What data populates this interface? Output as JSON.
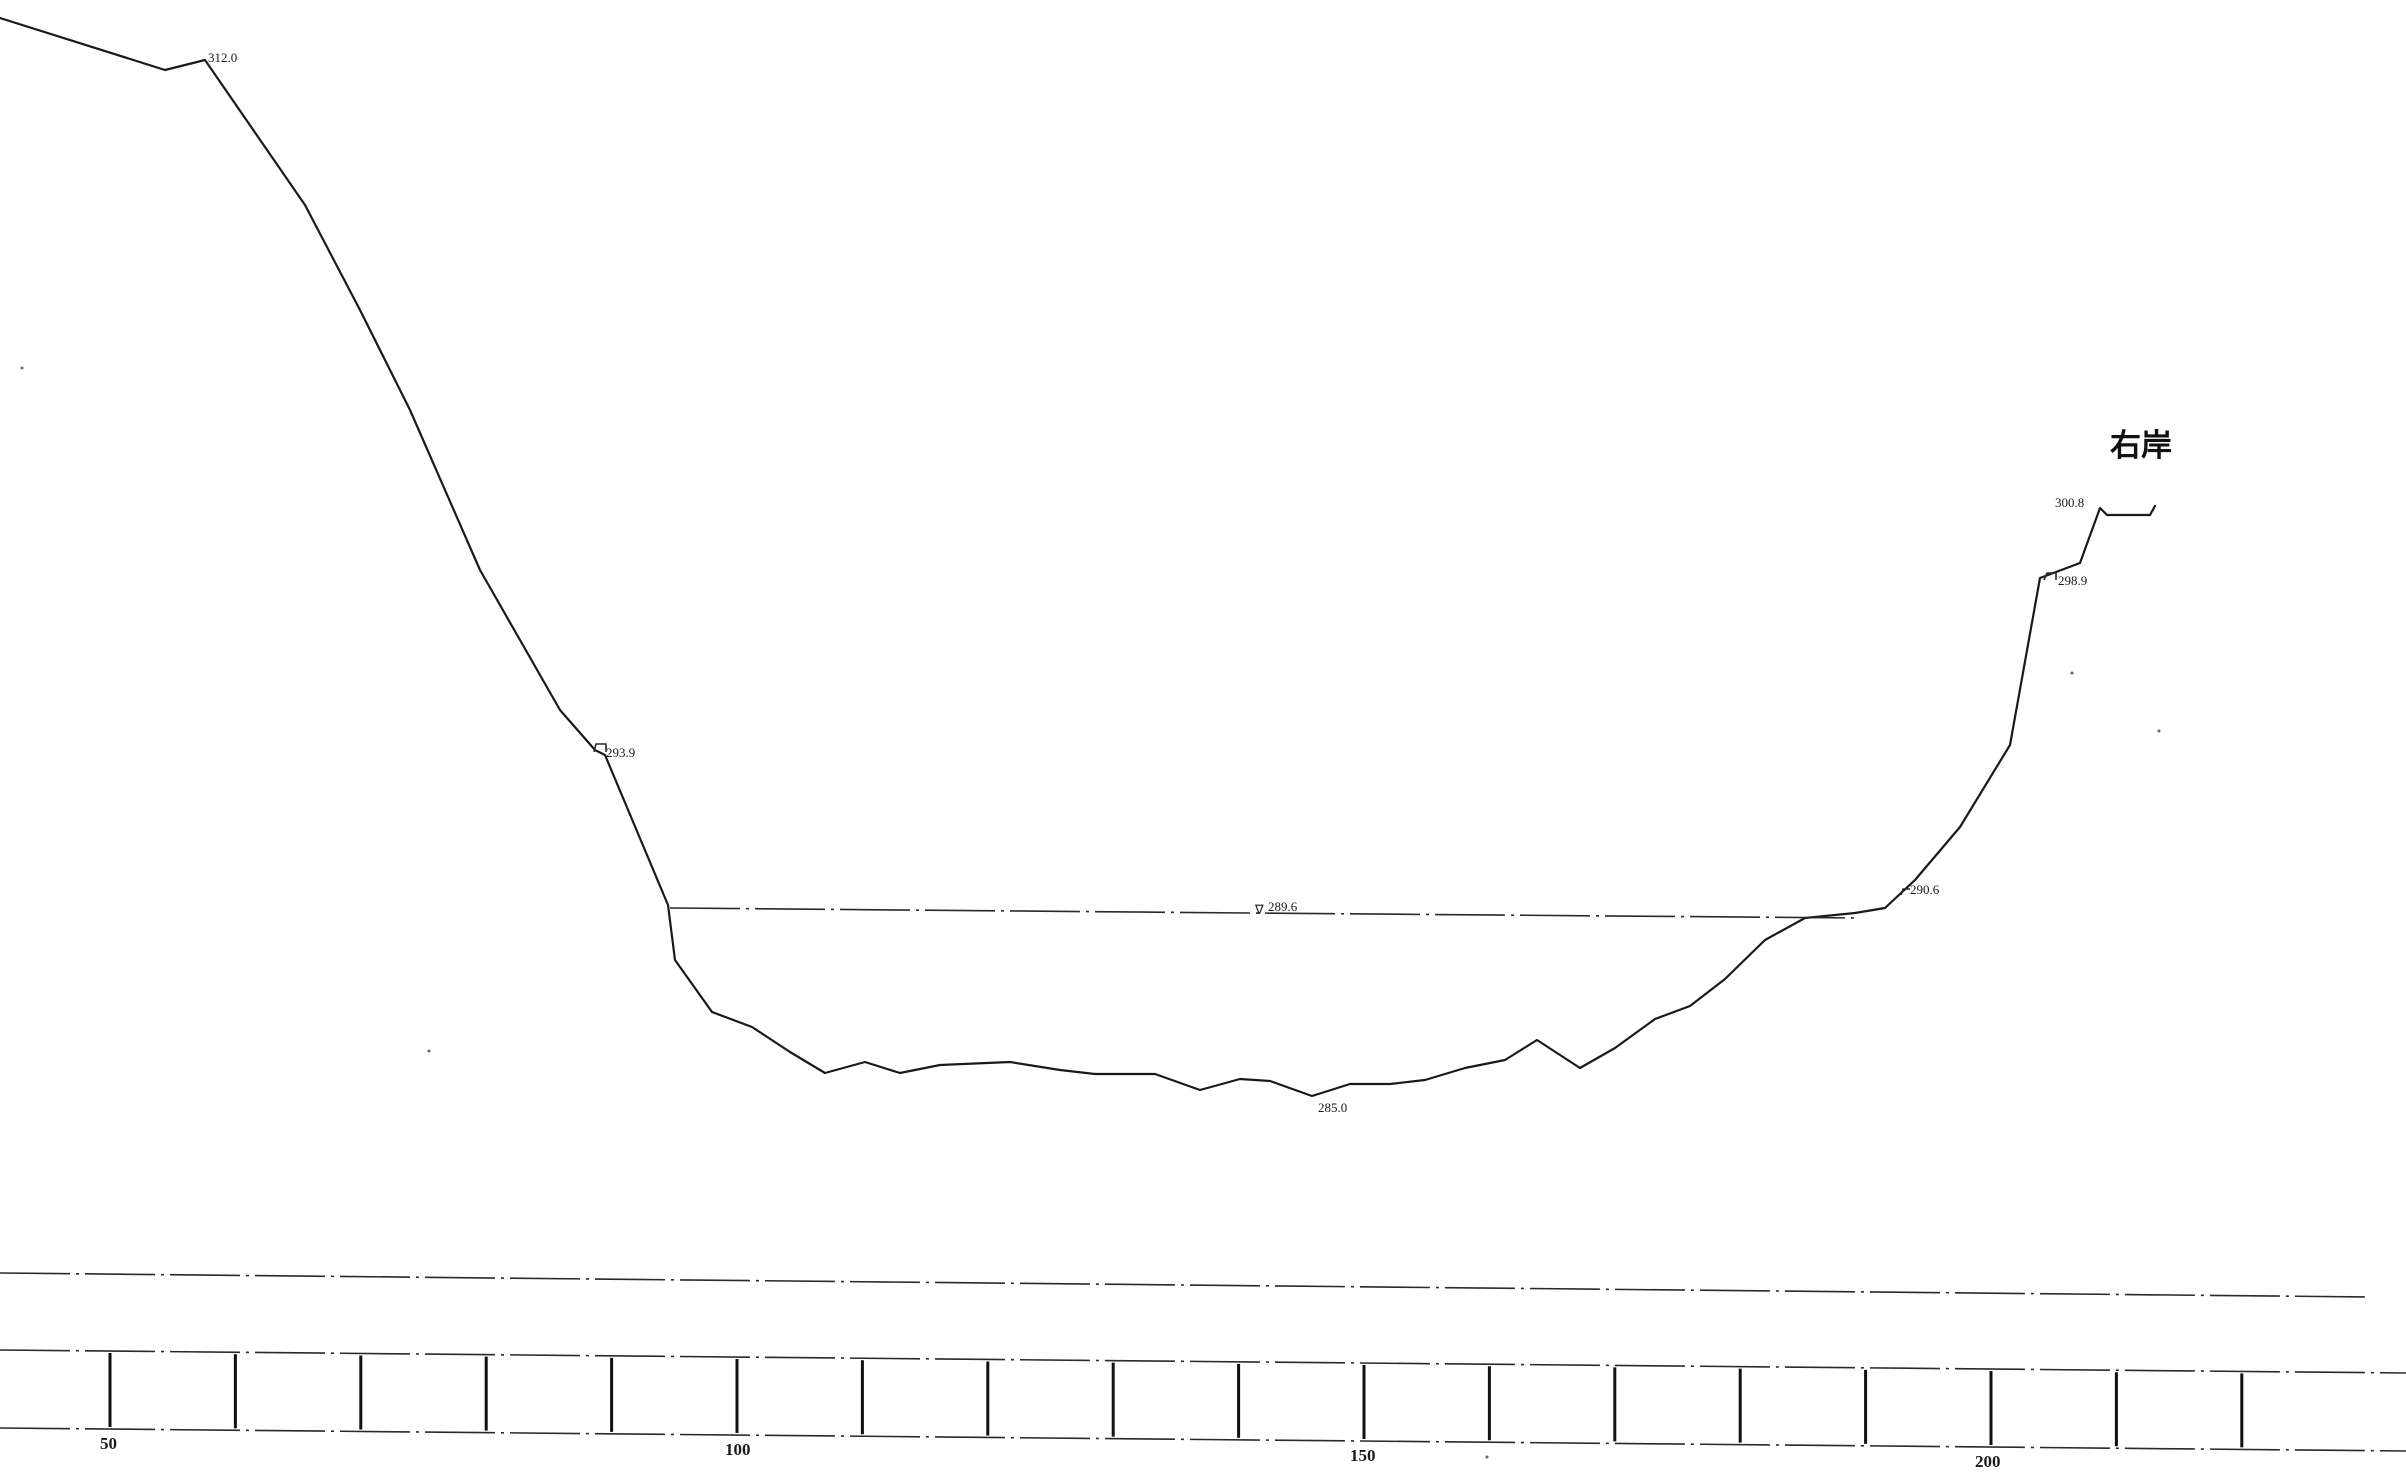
{
  "bank_label": "右岸",
  "elevation_labels": {
    "left_top": "312.0",
    "left_berm": "293.9",
    "water_level": "289.6",
    "bottom": "285.0",
    "right_berm": "290.6",
    "right_upper": "298.9",
    "right_top": "300.8"
  },
  "ruler_ticks": [
    "50",
    "100",
    "150",
    "200"
  ],
  "water_symbol": "∇"
}
